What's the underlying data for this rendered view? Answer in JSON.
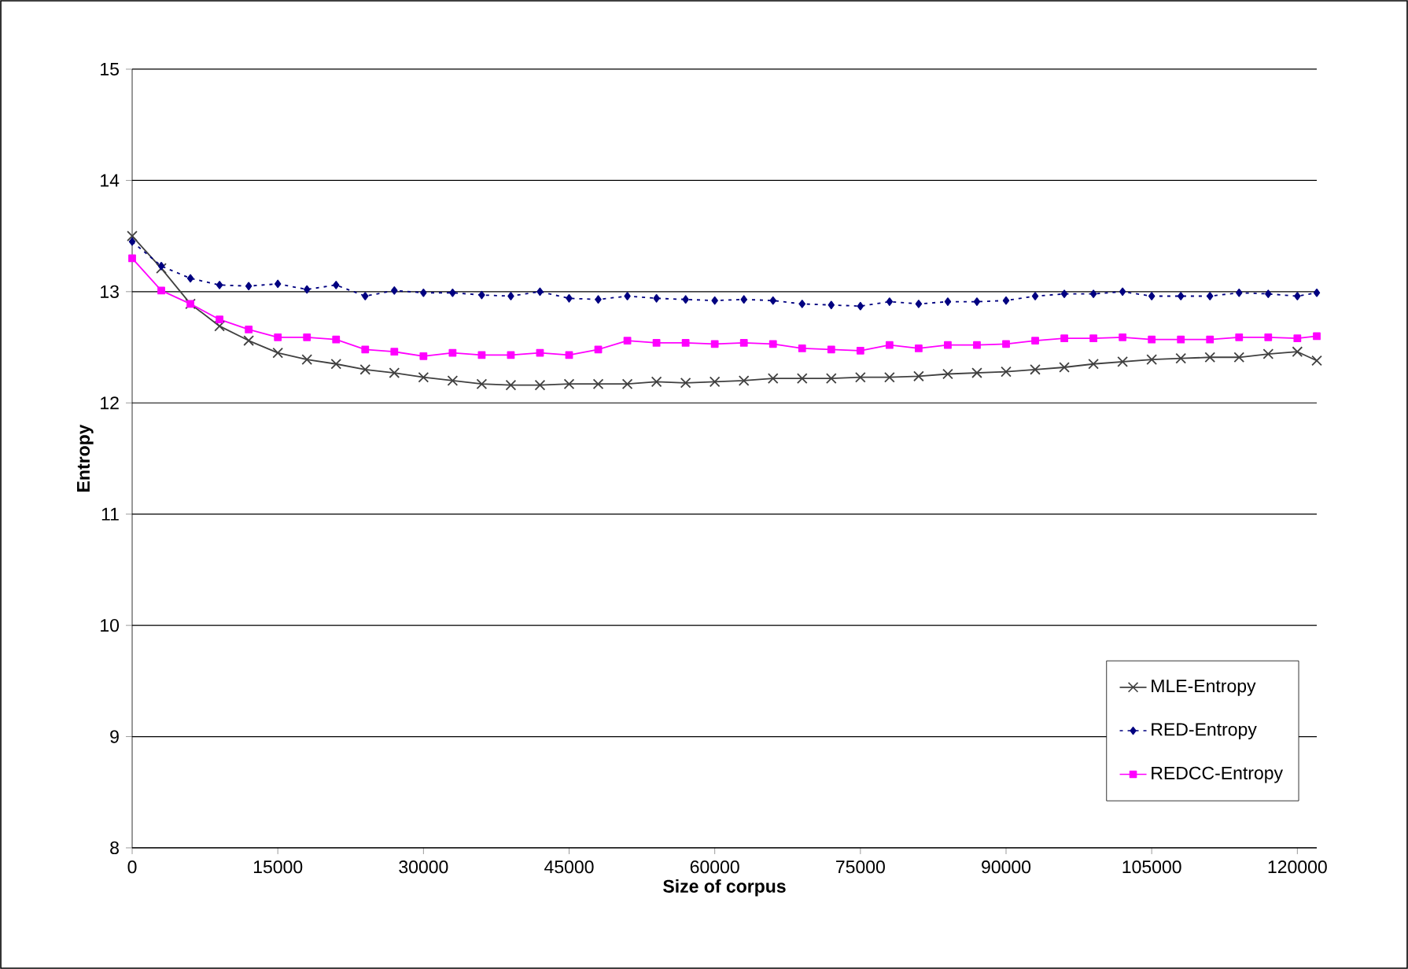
{
  "chart_data": {
    "type": "line",
    "xlabel": "Size of corpus",
    "ylabel": "Entropy",
    "x": [
      0,
      3000,
      6000,
      9000,
      12000,
      15000,
      18000,
      21000,
      24000,
      27000,
      30000,
      33000,
      36000,
      39000,
      42000,
      45000,
      48000,
      51000,
      54000,
      57000,
      60000,
      63000,
      66000,
      69000,
      72000,
      75000,
      78000,
      81000,
      84000,
      87000,
      90000,
      93000,
      96000,
      99000,
      102000,
      105000,
      108000,
      111000,
      114000,
      117000,
      120000,
      122000
    ],
    "series": [
      {
        "name": "MLE-Entropy",
        "color": "#404040",
        "marker": "cross",
        "line_style": "solid",
        "values": [
          13.5,
          13.21,
          12.89,
          12.69,
          12.56,
          12.45,
          12.39,
          12.35,
          12.3,
          12.27,
          12.23,
          12.2,
          12.17,
          12.16,
          12.16,
          12.17,
          12.17,
          12.17,
          12.19,
          12.18,
          12.19,
          12.2,
          12.22,
          12.22,
          12.22,
          12.23,
          12.23,
          12.24,
          12.26,
          12.27,
          12.28,
          12.3,
          12.32,
          12.35,
          12.37,
          12.39,
          12.4,
          12.41,
          12.41,
          12.44,
          12.46,
          12.38
        ]
      },
      {
        "name": "RED-Entropy",
        "color": "#000080",
        "marker": "diamond",
        "line_style": "dotted",
        "values": [
          13.45,
          13.23,
          13.12,
          13.06,
          13.05,
          13.07,
          13.02,
          13.06,
          12.96,
          13.01,
          12.99,
          12.99,
          12.97,
          12.96,
          13.0,
          12.94,
          12.93,
          12.96,
          12.94,
          12.93,
          12.92,
          12.93,
          12.92,
          12.89,
          12.88,
          12.87,
          12.91,
          12.89,
          12.91,
          12.91,
          12.92,
          12.96,
          12.98,
          12.98,
          13.0,
          12.96,
          12.96,
          12.96,
          12.99,
          12.98,
          12.96,
          12.99
        ]
      },
      {
        "name": "REDCC-Entropy",
        "color": "#ff00ff",
        "marker": "square",
        "line_style": "solid",
        "values": [
          13.3,
          13.01,
          12.89,
          12.75,
          12.66,
          12.59,
          12.59,
          12.57,
          12.48,
          12.46,
          12.42,
          12.45,
          12.43,
          12.43,
          12.45,
          12.43,
          12.48,
          12.56,
          12.54,
          12.54,
          12.53,
          12.54,
          12.53,
          12.49,
          12.48,
          12.47,
          12.52,
          12.49,
          12.52,
          12.52,
          12.53,
          12.56,
          12.58,
          12.58,
          12.59,
          12.57,
          12.57,
          12.57,
          12.59,
          12.59,
          12.58,
          12.6
        ]
      }
    ],
    "xlim": [
      0,
      122000
    ],
    "xticks": [
      0,
      15000,
      30000,
      45000,
      60000,
      75000,
      90000,
      105000,
      120000
    ],
    "ylim": [
      8,
      15
    ],
    "yticks": [
      8,
      9,
      10,
      11,
      12,
      13,
      14,
      15
    ],
    "grid": "y",
    "legend": "bottom right"
  }
}
